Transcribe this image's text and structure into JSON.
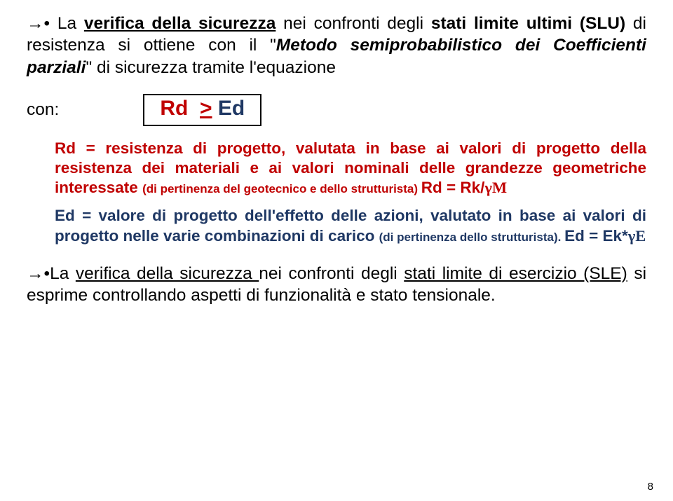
{
  "para1": {
    "lead": "→• La ",
    "t1_u_b": "verifica della  sicurezza",
    "t2": " nei confronti degli ",
    "t3_b": "stati limite ultimi (SLU)",
    "t4": " di resistenza si ottiene con il \"",
    "t5_i_b": "Metodo semiprobabilistico dei Coefficienti parziali",
    "t6": "\" di sicurezza tramite l'equazione"
  },
  "con_label": "con:",
  "formula": {
    "rd": "Rd",
    "ge": ">",
    "ed": "Ed"
  },
  "rd_block": {
    "lead": "Rd",
    "t1": " = resistenza di progetto, valutata in base ai valori di progetto della resistenza dei materiali e ai valori nominali delle grandezze geometriche interessate ",
    "small": "(di pertinenza del  geotecnico  e dello strutturista) ",
    "tail_b": "Rd = Rk/",
    "tail_g": "γM"
  },
  "ed_block": {
    "lead": "Ed",
    "t1": " = valore di progetto dell'effetto delle azioni, valutato in base ai valori di progetto nelle varie combinazioni di carico ",
    "small": "(di pertinenza dello strutturista). ",
    "tail_b": "Ed = Ek*",
    "tail_g": "γE"
  },
  "para2": {
    "lead": "→•",
    "t1": "La ",
    "t2_u": "verifica della  sicurezza ",
    "t3": " nei confronti degli ",
    "t4_u": "stati limite di esercizio (SLE)",
    "t5": " si esprime controllando aspetti di funzionalità e stato tensionale."
  },
  "page_number": "8",
  "colors": {
    "red": "#c00000",
    "blue": "#1f3864",
    "black": "#000000",
    "bg": "#ffffff"
  }
}
